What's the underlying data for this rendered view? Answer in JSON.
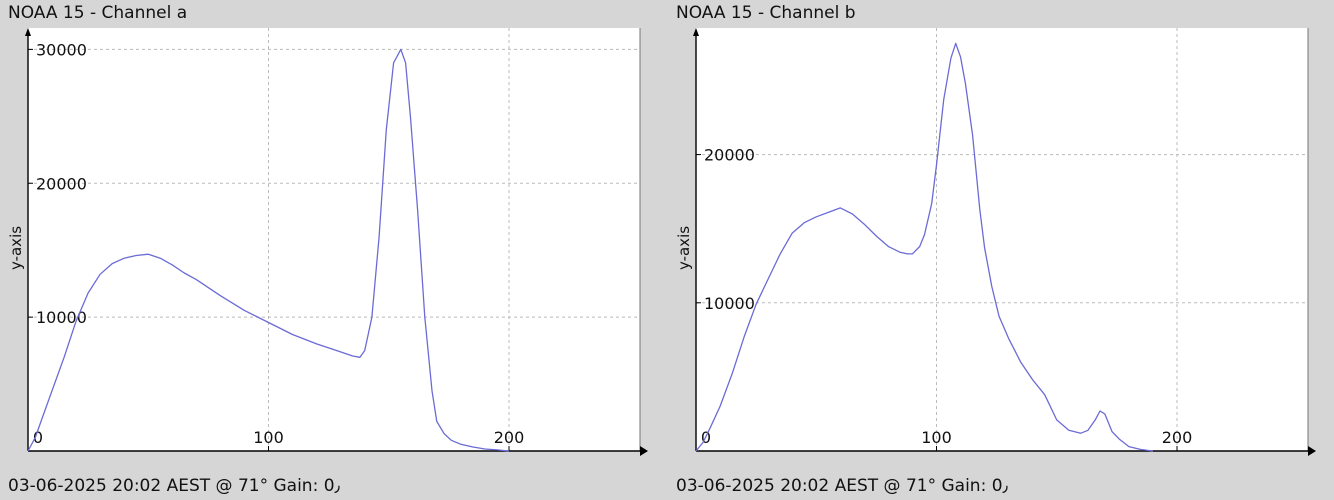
{
  "panels": [
    {
      "id": "a",
      "title": "NOAA 15 - Channel a",
      "footer": "03-06-2025 20:02 AEST @ 71° Gain: 0٫"
    },
    {
      "id": "b",
      "title": "NOAA 15 - Channel b",
      "footer": "03-06-2025 20:02 AEST @ 71° Gain: 0٫"
    }
  ],
  "chart_data": [
    {
      "type": "line",
      "title": "NOAA 15 - Channel a",
      "xlabel": "",
      "ylabel": "y-axis",
      "xlim": [
        0,
        255
      ],
      "ylim": [
        0,
        31000
      ],
      "xticks": [
        0,
        100,
        200
      ],
      "yticks": [
        10000,
        20000,
        30000
      ],
      "grid": true,
      "series": [
        {
          "color": "#6b6bd6",
          "x": [
            0,
            3,
            6,
            10,
            15,
            20,
            25,
            30,
            35,
            40,
            45,
            50,
            55,
            60,
            65,
            70,
            80,
            90,
            100,
            110,
            120,
            130,
            135,
            138,
            140,
            143,
            146,
            149,
            152,
            155,
            157,
            159,
            162,
            165,
            168,
            170,
            173,
            176,
            180,
            185,
            190,
            195,
            200
          ],
          "y": [
            0,
            1000,
            2500,
            4500,
            7000,
            9700,
            11800,
            13200,
            14000,
            14400,
            14600,
            14700,
            14400,
            13900,
            13300,
            12800,
            11600,
            10500,
            9600,
            8700,
            8000,
            7400,
            7100,
            7000,
            7500,
            10000,
            16000,
            24000,
            29000,
            30000,
            29000,
            25000,
            18000,
            10000,
            4500,
            2200,
            1300,
            800,
            500,
            300,
            150,
            80,
            0
          ]
        }
      ]
    },
    {
      "type": "line",
      "title": "NOAA 15 - Channel b",
      "xlabel": "",
      "ylabel": "y-axis",
      "xlim": [
        0,
        255
      ],
      "ylim": [
        0,
        28000
      ],
      "xticks": [
        0,
        100,
        200
      ],
      "yticks": [
        10000,
        20000
      ],
      "grid": true,
      "series": [
        {
          "color": "#6b6bd6",
          "x": [
            0,
            3,
            6,
            10,
            15,
            20,
            25,
            30,
            35,
            40,
            45,
            50,
            55,
            60,
            65,
            70,
            75,
            80,
            85,
            88,
            90,
            93,
            95,
            98,
            100,
            103,
            106,
            108,
            110,
            112,
            115,
            118,
            120,
            123,
            126,
            130,
            135,
            140,
            145,
            150,
            155,
            160,
            163,
            166,
            168,
            170,
            173,
            176,
            180,
            185,
            190
          ],
          "y": [
            0,
            600,
            1600,
            3000,
            5200,
            7700,
            9900,
            11600,
            13300,
            14700,
            15400,
            15800,
            16100,
            16400,
            16000,
            15300,
            14500,
            13800,
            13400,
            13300,
            13300,
            13800,
            14600,
            16700,
            19300,
            23700,
            26500,
            27500,
            26600,
            24800,
            21300,
            16300,
            13700,
            11100,
            9100,
            7600,
            6000,
            4800,
            3800,
            2100,
            1400,
            1200,
            1400,
            2100,
            2700,
            2500,
            1300,
            800,
            300,
            100,
            0
          ]
        }
      ]
    }
  ]
}
